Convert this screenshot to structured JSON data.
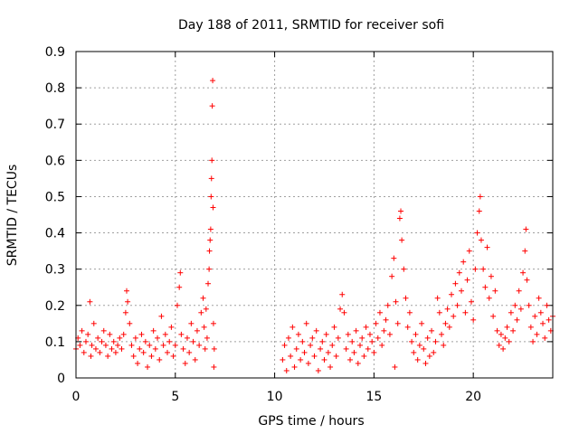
{
  "chart_data": {
    "type": "scatter",
    "title": "Day 188 of 2011, SRMTID for receiver sofi",
    "xlabel": "GPS time / hours",
    "ylabel": "SRMTID / TECUs",
    "xlim": [
      0,
      24
    ],
    "ylim": [
      0,
      0.9
    ],
    "x_ticks": [
      0,
      5,
      10,
      15,
      20
    ],
    "x_tick_labels": [
      "0",
      "5",
      "10",
      "15",
      "20"
    ],
    "y_ticks": [
      0,
      0.1,
      0.2,
      0.3,
      0.4,
      0.5,
      0.6,
      0.7,
      0.8,
      0.9
    ],
    "y_tick_labels": [
      "0",
      "0.1",
      "0.2",
      "0.3",
      "0.4",
      "0.5",
      "0.6",
      "0.7",
      "0.8",
      "0.9"
    ],
    "grid": true,
    "marker": "+",
    "color": "#ff0000",
    "series": [
      {
        "name": "SRMTID",
        "points": [
          [
            0.0,
            0.08
          ],
          [
            0.1,
            0.11
          ],
          [
            0.2,
            0.09
          ],
          [
            0.3,
            0.13
          ],
          [
            0.4,
            0.07
          ],
          [
            0.5,
            0.1
          ],
          [
            0.6,
            0.12
          ],
          [
            0.7,
            0.21
          ],
          [
            0.75,
            0.06
          ],
          [
            0.8,
            0.09
          ],
          [
            0.9,
            0.15
          ],
          [
            1.0,
            0.08
          ],
          [
            1.1,
            0.11
          ],
          [
            1.2,
            0.07
          ],
          [
            1.3,
            0.1
          ],
          [
            1.4,
            0.13
          ],
          [
            1.5,
            0.09
          ],
          [
            1.6,
            0.06
          ],
          [
            1.7,
            0.12
          ],
          [
            1.8,
            0.08
          ],
          [
            1.9,
            0.1
          ],
          [
            2.0,
            0.07
          ],
          [
            2.1,
            0.09
          ],
          [
            2.2,
            0.11
          ],
          [
            2.3,
            0.08
          ],
          [
            2.4,
            0.12
          ],
          [
            2.5,
            0.18
          ],
          [
            2.55,
            0.24
          ],
          [
            2.6,
            0.21
          ],
          [
            2.7,
            0.15
          ],
          [
            2.8,
            0.09
          ],
          [
            2.9,
            0.06
          ],
          [
            3.0,
            0.11
          ],
          [
            3.1,
            0.04
          ],
          [
            3.2,
            0.08
          ],
          [
            3.3,
            0.12
          ],
          [
            3.4,
            0.07
          ],
          [
            3.5,
            0.1
          ],
          [
            3.6,
            0.03
          ],
          [
            3.7,
            0.09
          ],
          [
            3.8,
            0.06
          ],
          [
            3.9,
            0.13
          ],
          [
            4.0,
            0.08
          ],
          [
            4.1,
            0.11
          ],
          [
            4.2,
            0.05
          ],
          [
            4.3,
            0.17
          ],
          [
            4.4,
            0.09
          ],
          [
            4.5,
            0.12
          ],
          [
            4.6,
            0.07
          ],
          [
            4.7,
            0.1
          ],
          [
            4.8,
            0.14
          ],
          [
            4.9,
            0.06
          ],
          [
            5.0,
            0.09
          ],
          [
            5.1,
            0.2
          ],
          [
            5.2,
            0.25
          ],
          [
            5.25,
            0.29
          ],
          [
            5.3,
            0.12
          ],
          [
            5.4,
            0.08
          ],
          [
            5.5,
            0.04
          ],
          [
            5.6,
            0.11
          ],
          [
            5.7,
            0.07
          ],
          [
            5.8,
            0.15
          ],
          [
            5.9,
            0.1
          ],
          [
            6.0,
            0.05
          ],
          [
            6.1,
            0.13
          ],
          [
            6.2,
            0.09
          ],
          [
            6.3,
            0.18
          ],
          [
            6.4,
            0.22
          ],
          [
            6.45,
            0.14
          ],
          [
            6.5,
            0.08
          ],
          [
            6.55,
            0.19
          ],
          [
            6.6,
            0.11
          ],
          [
            6.65,
            0.26
          ],
          [
            6.7,
            0.3
          ],
          [
            6.72,
            0.35
          ],
          [
            6.75,
            0.38
          ],
          [
            6.78,
            0.41
          ],
          [
            6.8,
            0.5
          ],
          [
            6.82,
            0.55
          ],
          [
            6.84,
            0.6
          ],
          [
            6.86,
            0.75
          ],
          [
            6.88,
            0.82
          ],
          [
            6.9,
            0.47
          ],
          [
            6.92,
            0.15
          ],
          [
            6.94,
            0.03
          ],
          [
            6.96,
            0.08
          ],
          [
            10.4,
            0.05
          ],
          [
            10.5,
            0.09
          ],
          [
            10.6,
            0.02
          ],
          [
            10.7,
            0.11
          ],
          [
            10.8,
            0.06
          ],
          [
            10.9,
            0.14
          ],
          [
            11.0,
            0.03
          ],
          [
            11.1,
            0.08
          ],
          [
            11.2,
            0.12
          ],
          [
            11.3,
            0.05
          ],
          [
            11.4,
            0.1
          ],
          [
            11.5,
            0.07
          ],
          [
            11.6,
            0.15
          ],
          [
            11.7,
            0.04
          ],
          [
            11.8,
            0.09
          ],
          [
            11.9,
            0.11
          ],
          [
            12.0,
            0.06
          ],
          [
            12.1,
            0.13
          ],
          [
            12.2,
            0.02
          ],
          [
            12.3,
            0.08
          ],
          [
            12.4,
            0.1
          ],
          [
            12.5,
            0.05
          ],
          [
            12.6,
            0.12
          ],
          [
            12.7,
            0.07
          ],
          [
            12.8,
            0.03
          ],
          [
            12.9,
            0.09
          ],
          [
            13.0,
            0.14
          ],
          [
            13.1,
            0.06
          ],
          [
            13.2,
            0.11
          ],
          [
            13.3,
            0.19
          ],
          [
            13.4,
            0.23
          ],
          [
            13.5,
            0.18
          ],
          [
            13.6,
            0.08
          ],
          [
            13.7,
            0.12
          ],
          [
            13.8,
            0.05
          ],
          [
            13.9,
            0.1
          ],
          [
            14.0,
            0.07
          ],
          [
            14.1,
            0.13
          ],
          [
            14.2,
            0.04
          ],
          [
            14.3,
            0.09
          ],
          [
            14.4,
            0.11
          ],
          [
            14.5,
            0.06
          ],
          [
            14.6,
            0.14
          ],
          [
            14.7,
            0.08
          ],
          [
            14.8,
            0.12
          ],
          [
            14.9,
            0.1
          ],
          [
            15.0,
            0.07
          ],
          [
            15.1,
            0.15
          ],
          [
            15.2,
            0.11
          ],
          [
            15.3,
            0.18
          ],
          [
            15.4,
            0.09
          ],
          [
            15.5,
            0.13
          ],
          [
            15.6,
            0.16
          ],
          [
            15.7,
            0.2
          ],
          [
            15.8,
            0.12
          ],
          [
            15.9,
            0.28
          ],
          [
            16.0,
            0.33
          ],
          [
            16.05,
            0.03
          ],
          [
            16.1,
            0.21
          ],
          [
            16.2,
            0.15
          ],
          [
            16.3,
            0.44
          ],
          [
            16.35,
            0.46
          ],
          [
            16.4,
            0.38
          ],
          [
            16.5,
            0.3
          ],
          [
            16.6,
            0.22
          ],
          [
            16.7,
            0.14
          ],
          [
            16.8,
            0.18
          ],
          [
            16.9,
            0.1
          ],
          [
            17.0,
            0.07
          ],
          [
            17.1,
            0.12
          ],
          [
            17.2,
            0.05
          ],
          [
            17.3,
            0.09
          ],
          [
            17.4,
            0.15
          ],
          [
            17.5,
            0.08
          ],
          [
            17.6,
            0.04
          ],
          [
            17.7,
            0.11
          ],
          [
            17.8,
            0.06
          ],
          [
            17.9,
            0.13
          ],
          [
            18.0,
            0.07
          ],
          [
            18.1,
            0.1
          ],
          [
            18.2,
            0.22
          ],
          [
            18.3,
            0.18
          ],
          [
            18.4,
            0.12
          ],
          [
            18.5,
            0.09
          ],
          [
            18.6,
            0.15
          ],
          [
            18.7,
            0.19
          ],
          [
            18.8,
            0.14
          ],
          [
            18.9,
            0.23
          ],
          [
            19.0,
            0.17
          ],
          [
            19.1,
            0.26
          ],
          [
            19.2,
            0.2
          ],
          [
            19.3,
            0.29
          ],
          [
            19.4,
            0.24
          ],
          [
            19.5,
            0.32
          ],
          [
            19.6,
            0.18
          ],
          [
            19.7,
            0.27
          ],
          [
            19.8,
            0.35
          ],
          [
            19.9,
            0.21
          ],
          [
            20.0,
            0.16
          ],
          [
            20.1,
            0.3
          ],
          [
            20.2,
            0.4
          ],
          [
            20.3,
            0.46
          ],
          [
            20.35,
            0.5
          ],
          [
            20.4,
            0.38
          ],
          [
            20.5,
            0.3
          ],
          [
            20.6,
            0.25
          ],
          [
            20.7,
            0.36
          ],
          [
            20.8,
            0.22
          ],
          [
            20.9,
            0.28
          ],
          [
            21.0,
            0.17
          ],
          [
            21.1,
            0.24
          ],
          [
            21.2,
            0.13
          ],
          [
            21.3,
            0.09
          ],
          [
            21.4,
            0.12
          ],
          [
            21.5,
            0.08
          ],
          [
            21.6,
            0.11
          ],
          [
            21.7,
            0.14
          ],
          [
            21.8,
            0.1
          ],
          [
            21.9,
            0.18
          ],
          [
            22.0,
            0.13
          ],
          [
            22.1,
            0.2
          ],
          [
            22.2,
            0.16
          ],
          [
            22.3,
            0.24
          ],
          [
            22.4,
            0.19
          ],
          [
            22.5,
            0.29
          ],
          [
            22.6,
            0.35
          ],
          [
            22.65,
            0.41
          ],
          [
            22.7,
            0.27
          ],
          [
            22.8,
            0.2
          ],
          [
            22.9,
            0.14
          ],
          [
            23.0,
            0.1
          ],
          [
            23.1,
            0.17
          ],
          [
            23.2,
            0.12
          ],
          [
            23.3,
            0.22
          ],
          [
            23.4,
            0.18
          ],
          [
            23.5,
            0.15
          ],
          [
            23.6,
            0.11
          ],
          [
            23.7,
            0.2
          ],
          [
            23.8,
            0.16
          ],
          [
            23.9,
            0.13
          ],
          [
            24.0,
            0.17
          ]
        ]
      }
    ]
  }
}
